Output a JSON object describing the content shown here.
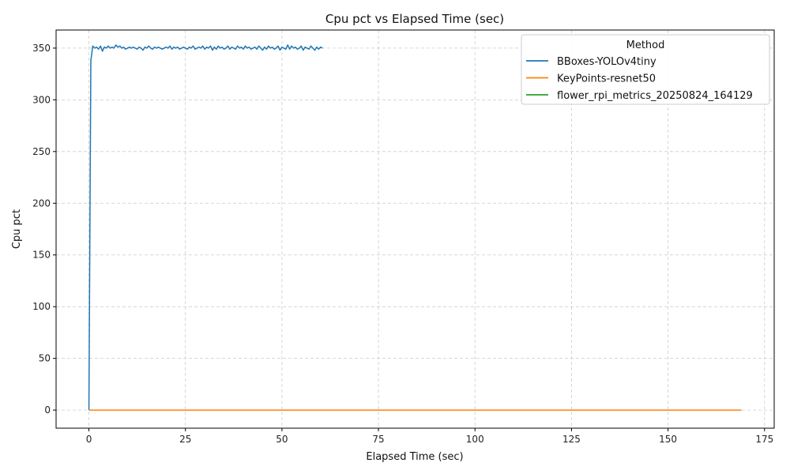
{
  "chart_data": {
    "type": "line",
    "title": "Cpu pct vs Elapsed Time (sec)",
    "xlabel": "Elapsed Time (sec)",
    "ylabel": "Cpu pct",
    "xlim": [
      -8.5,
      177.5
    ],
    "ylim": [
      -17.5,
      367.5
    ],
    "xticks": [
      0,
      25,
      50,
      75,
      100,
      125,
      150,
      175
    ],
    "yticks": [
      0,
      50,
      100,
      150,
      200,
      250,
      300,
      350
    ],
    "grid": true,
    "legend": {
      "title": "Method",
      "placement": "top-right"
    },
    "series": [
      {
        "name": "BBoxes-YOLOv4tiny",
        "color": "#1f77b4",
        "x": [
          0,
          0.5,
          1,
          1.5,
          2,
          2.5,
          3,
          3.5,
          4,
          4.5,
          5,
          5.5,
          6,
          6.5,
          7,
          7.5,
          8,
          8.5,
          9,
          9.5,
          10,
          10.5,
          11,
          11.5,
          12,
          12.5,
          13,
          13.5,
          14,
          14.5,
          15,
          15.5,
          16,
          16.5,
          17,
          17.5,
          18,
          18.5,
          19,
          19.5,
          20,
          20.5,
          21,
          21.5,
          22,
          22.5,
          23,
          23.5,
          24,
          24.5,
          25,
          25.5,
          26,
          26.5,
          27,
          27.5,
          28,
          28.5,
          29,
          29.5,
          30,
          30.5,
          31,
          31.5,
          32,
          32.5,
          33,
          33.5,
          34,
          34.5,
          35,
          35.5,
          36,
          36.5,
          37,
          37.5,
          38,
          38.5,
          39,
          39.5,
          40,
          40.5,
          41,
          41.5,
          42,
          42.5,
          43,
          43.5,
          44,
          44.5,
          45,
          45.5,
          46,
          46.5,
          47,
          47.5,
          48,
          48.5,
          49,
          49.5,
          50,
          50.5,
          51,
          51.5,
          52,
          52.5,
          53,
          53.5,
          54,
          54.5,
          55,
          55.5,
          56,
          56.5,
          57,
          57.5,
          58,
          58.5,
          59,
          59.5,
          60,
          60.5
        ],
        "y": [
          0,
          338,
          352,
          350,
          351,
          349,
          352,
          347,
          351,
          350,
          352,
          350,
          351,
          350,
          353,
          351,
          352,
          350,
          351,
          349,
          350,
          351,
          350,
          351,
          350,
          349,
          351,
          350,
          348,
          351,
          350,
          352,
          350,
          349,
          351,
          350,
          351,
          350,
          349,
          350,
          351,
          350,
          352,
          349,
          351,
          350,
          351,
          349,
          350,
          351,
          350,
          349,
          351,
          350,
          352,
          349,
          350,
          351,
          350,
          352,
          349,
          351,
          350,
          352,
          348,
          351,
          349,
          352,
          350,
          351,
          349,
          350,
          352,
          349,
          351,
          350,
          349,
          352,
          350,
          351,
          349,
          352,
          350,
          351,
          349,
          350,
          351,
          349,
          352,
          350,
          348,
          351,
          349,
          352,
          350,
          351,
          349,
          350,
          352,
          348,
          351,
          350,
          349,
          353,
          349,
          352,
          350,
          351,
          349,
          350,
          352,
          348,
          351,
          350,
          349,
          352,
          350,
          348,
          351,
          349,
          351,
          350
        ]
      },
      {
        "name": "KeyPoints-resnet50",
        "color": "#ff7f0e",
        "x": [
          0,
          25,
          50,
          75,
          100,
          125,
          150,
          169
        ],
        "y": [
          0,
          0,
          0,
          0,
          0,
          0,
          0,
          0
        ]
      },
      {
        "name": "flower_rpi_metrics_20250824_164129",
        "color": "#2ca02c",
        "x": [],
        "y": []
      }
    ]
  }
}
